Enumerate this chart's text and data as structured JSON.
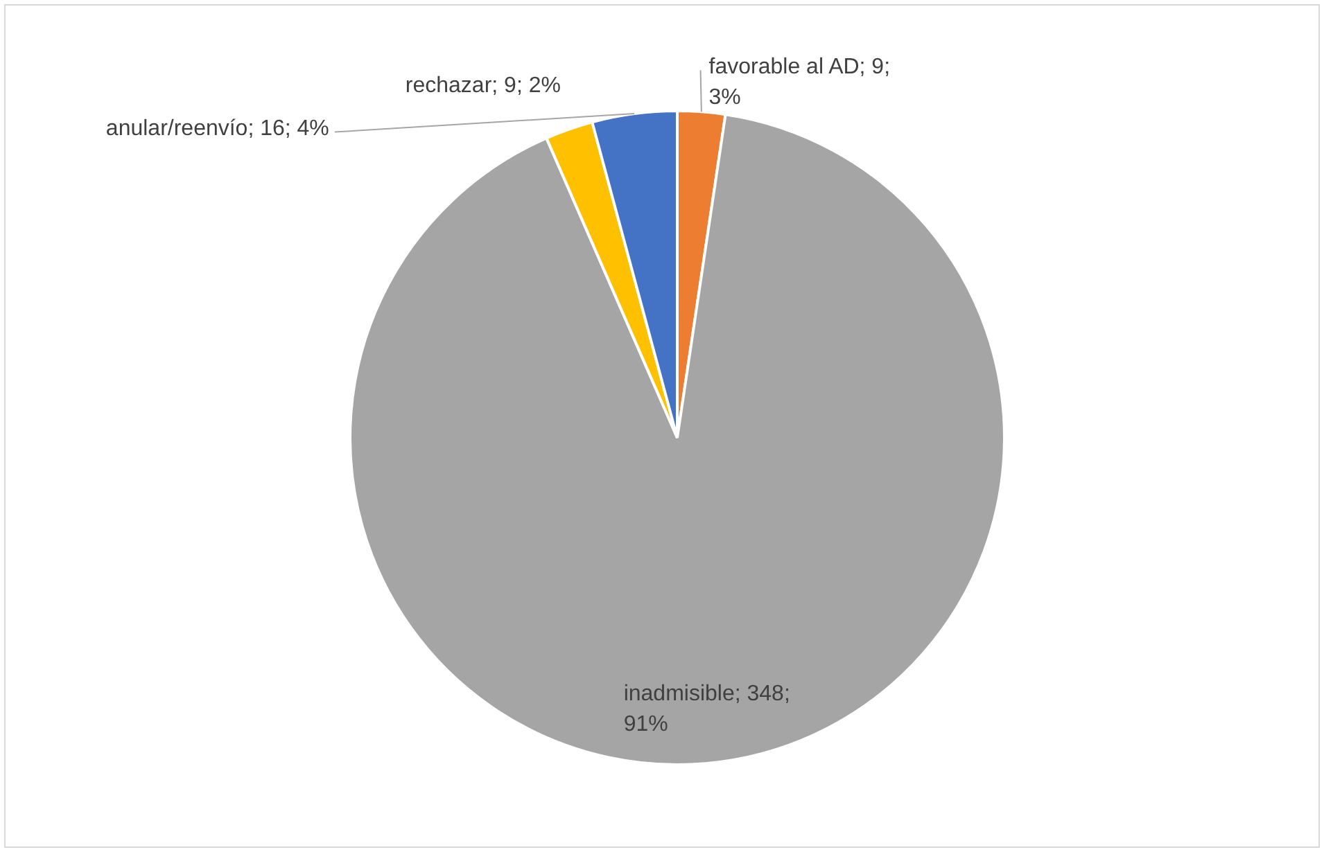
{
  "chart_data": {
    "type": "pie",
    "categories": [
      "favorable al AD",
      "inadmisible",
      "rechazar",
      "anular/reenvío"
    ],
    "values": [
      9,
      348,
      9,
      16
    ],
    "colors": [
      "#ed7d31",
      "#a5a5a5",
      "#ffc000",
      "#4472c4"
    ],
    "value_labels": [
      "9; 3%",
      "348; 91%",
      "9; 2%",
      "16; 4%"
    ],
    "legend": false
  }
}
